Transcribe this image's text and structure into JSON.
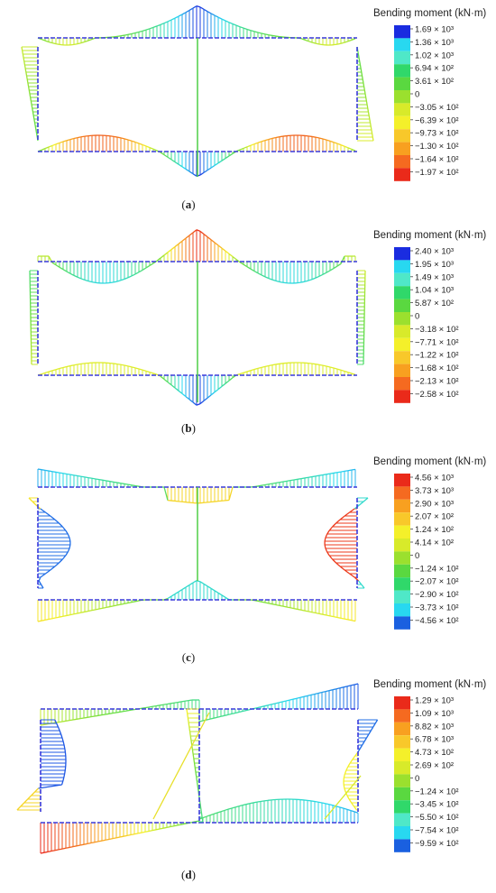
{
  "panels": [
    {
      "caption": "a",
      "legend_title": "Bending moment (kN·m)",
      "legend_labels": [
        "1.69 × 10³",
        "1.36 × 10³",
        "1.02 × 10³",
        "6.94 × 10²",
        "3.61 × 10²",
        "0",
        "−3.05 × 10²",
        "−6.39 × 10²",
        "−9.73 × 10²",
        "−1.30 × 10²",
        "−1.64 × 10²",
        "−1.97 × 10²"
      ],
      "legend_colors": [
        "#1a2ce0",
        "#28d8f0",
        "#4fe8c8",
        "#30d86a",
        "#5ad840",
        "#9be02e",
        "#d8ea2a",
        "#f4f02a",
        "#f8c82a",
        "#f8a020",
        "#f56a20",
        "#ea2a1a"
      ]
    },
    {
      "caption": "b",
      "legend_title": "Bending moment (kN·m)",
      "legend_labels": [
        "2.40 × 10³",
        "1.95 × 10³",
        "1.49 × 10³",
        "1.04 × 10³",
        "5.87 × 10²",
        "0",
        "−3.18 × 10²",
        "−7.71 × 10²",
        "−1.22 × 10²",
        "−1.68 × 10²",
        "−2.13 × 10²",
        "−2.58 × 10²"
      ],
      "legend_colors": [
        "#1a2ce0",
        "#28d8f0",
        "#4fe8c8",
        "#30d86a",
        "#5ad840",
        "#9be02e",
        "#d8ea2a",
        "#f4f02a",
        "#f8c82a",
        "#f8a020",
        "#f56a20",
        "#ea2a1a"
      ]
    },
    {
      "caption": "c",
      "legend_title": "Bending moment (kN·m)",
      "legend_labels": [
        "4.56 × 10³",
        "3.73 × 10³",
        "2.90 × 10³",
        "2.07 × 10²",
        "1.24 × 10²",
        "4.14 × 10²",
        "0",
        "−1.24 × 10²",
        "−2.07 × 10²",
        "−2.90 × 10²",
        "−3.73 × 10²",
        "−4.56 × 10²"
      ],
      "legend_colors": [
        "#ea2a1a",
        "#f56a20",
        "#f8a020",
        "#f8c82a",
        "#f4f02a",
        "#d8ea2a",
        "#9be02e",
        "#5ad840",
        "#30d86a",
        "#4fe8c8",
        "#28d8f0",
        "#1a60e0"
      ]
    },
    {
      "caption": "d",
      "legend_title": "Bending moment (kN·m)",
      "legend_labels": [
        "1.29 × 10³",
        "1.09 × 10³",
        "8.82 × 10³",
        "6.78 × 10³",
        "4.73 × 10²",
        "2.69 × 10²",
        "0",
        "−1.24 × 10²",
        "−3.45 × 10²",
        "−5.50 × 10²",
        "−7.54 × 10²",
        "−9.59 × 10²"
      ],
      "legend_colors": [
        "#ea2a1a",
        "#f56a20",
        "#f8a020",
        "#f8c82a",
        "#f4f02a",
        "#d8ea2a",
        "#9be02e",
        "#5ad840",
        "#30d86a",
        "#4fe8c8",
        "#28d8f0",
        "#1a60e0"
      ]
    }
  ]
}
